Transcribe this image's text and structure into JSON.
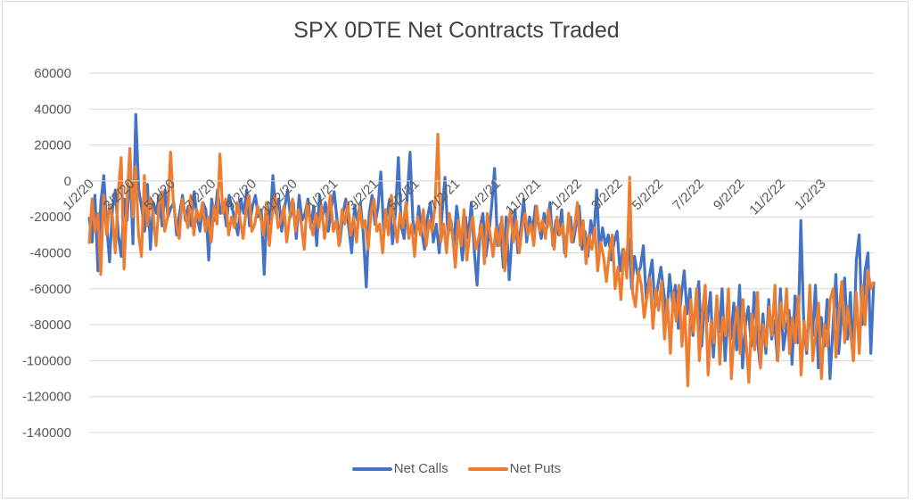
{
  "chart_data": {
    "type": "line",
    "title": "SPX 0DTE Net Contracts Traded",
    "xlabel": "",
    "ylabel": "",
    "ylim": [
      -140000,
      60000
    ],
    "yticks": [
      60000,
      40000,
      20000,
      0,
      -20000,
      -40000,
      -60000,
      -80000,
      -100000,
      -120000,
      -140000
    ],
    "ytick_labels": [
      "60000",
      "40000",
      "20000",
      "0",
      "-20000",
      "-40000",
      "-60000",
      "-80000",
      "-100000",
      "-120000",
      "-140000"
    ],
    "xtick_labels": [
      "1/2/20",
      "3/2/20",
      "5/2/20",
      "7/2/20",
      "9/2/20",
      "11/2/20",
      "1/2/21",
      "3/2/21",
      "5/2/21",
      "7/2/21",
      "9/2/21",
      "11/2/21",
      "1/2/22",
      "3/2/22",
      "5/2/22",
      "7/2/22",
      "9/2/22",
      "11/2/22",
      "1/2/23"
    ],
    "grid": true,
    "legend_position": "bottom",
    "series": [
      {
        "name": "Net Calls",
        "color": "#4472C4",
        "values": [
          -20000,
          -34000,
          -8000,
          -50000,
          -12000,
          3000,
          -24000,
          -45000,
          -15000,
          -5000,
          -30000,
          -42000,
          -10000,
          -22000,
          8000,
          -35000,
          37000,
          -5000,
          -15000,
          -28000,
          -2000,
          -38000,
          -12000,
          -18000,
          -8000,
          -25000,
          -5000,
          -20000,
          -15000,
          -12000,
          -30000,
          -18000,
          -8000,
          -22000,
          -14000,
          -25000,
          -6000,
          -20000,
          -28000,
          -12000,
          -16000,
          -44000,
          -10000,
          -22000,
          -5000,
          -18000,
          -12000,
          -25000,
          -8000,
          -15000,
          -22000,
          -30000,
          -10000,
          -18000,
          -5000,
          -25000,
          -14000,
          -8000,
          -20000,
          -16000,
          -52000,
          -12000,
          -24000,
          3000,
          -18000,
          -10000,
          -28000,
          -15000,
          -5000,
          -20000,
          -12000,
          -32000,
          -8000,
          -22000,
          -18000,
          -10000,
          -26000,
          -14000,
          -36000,
          -8000,
          -20000,
          -12000,
          -28000,
          -15000,
          -6000,
          -22000,
          -34000,
          -18000,
          -10000,
          -26000,
          -40000,
          -14000,
          -22000,
          -12000,
          -30000,
          -59000,
          -18000,
          -8000,
          -24000,
          -15000,
          5000,
          -28000,
          -20000,
          -10000,
          -35000,
          -18000,
          13000,
          -25000,
          -32000,
          -10000,
          16000,
          -22000,
          -30000,
          -14000,
          -28000,
          -38000,
          -20000,
          -12000,
          -34000,
          -24000,
          -40000,
          -18000,
          2000,
          -30000,
          -22000,
          -36000,
          -14000,
          -28000,
          -44000,
          -20000,
          -32000,
          -12000,
          -38000,
          -58000,
          -26000,
          -18000,
          -42000,
          -30000,
          -14000,
          7000,
          -36000,
          -24000,
          -48000,
          -20000,
          -55000,
          -30000,
          -16000,
          -40000,
          -26000,
          -10000,
          -34000,
          -20000,
          -28000,
          -14000,
          -24000,
          -32000,
          -18000,
          -26000,
          -12000,
          -36000,
          -22000,
          -30000,
          -16000,
          -40000,
          -28000,
          -20000,
          -34000,
          -24000,
          -14000,
          -38000,
          -28000,
          -42000,
          -22000,
          -32000,
          -5000,
          -40000,
          -26000,
          -36000,
          -30000,
          -44000,
          -34000,
          -28000,
          -50000,
          -38000,
          -46000,
          -32000,
          -60000,
          -42000,
          -52000,
          -48000,
          -36000,
          -66000,
          -54000,
          -44000,
          -70000,
          -58000,
          -48000,
          -62000,
          -76000,
          -52000,
          -68000,
          -58000,
          -82000,
          -64000,
          -50000,
          -74000,
          -60000,
          -86000,
          -70000,
          -56000,
          -92000,
          -66000,
          -78000,
          -62000,
          -98000,
          -72000,
          -84000,
          -60000,
          -100000,
          -76000,
          -88000,
          -68000,
          -94000,
          -58000,
          -104000,
          -80000,
          -70000,
          -92000,
          -62000,
          -86000,
          -102000,
          -74000,
          -96000,
          -66000,
          -88000,
          -78000,
          -100000,
          -60000,
          -94000,
          -82000,
          -72000,
          -102000,
          -64000,
          -90000,
          -22000,
          -80000,
          -96000,
          -70000,
          -86000,
          -58000,
          -104000,
          -76000,
          -92000,
          -66000,
          -110000,
          -82000,
          -52000,
          -96000,
          -74000,
          -54000,
          -88000,
          -62000,
          -100000,
          -44000,
          -30000,
          -80000,
          -50000,
          -40000,
          -96000,
          -56000
        ]
      },
      {
        "name": "Net Puts",
        "color": "#ED7D31",
        "values": [
          -35000,
          -10000,
          -28000,
          -18000,
          -52000,
          -8000,
          -30000,
          -14000,
          -20000,
          -40000,
          -6000,
          13000,
          -49000,
          -12000,
          18000,
          -20000,
          8000,
          -30000,
          -42000,
          3000,
          -25000,
          -10000,
          -18000,
          -36000,
          -14000,
          -6000,
          -28000,
          -20000,
          16000,
          -12000,
          -24000,
          -32000,
          -10000,
          -18000,
          -26000,
          -8000,
          -30000,
          -16000,
          -22000,
          -12000,
          -28000,
          -20000,
          -34000,
          -14000,
          -24000,
          15000,
          -18000,
          -10000,
          -30000,
          -20000,
          -26000,
          -12000,
          -22000,
          -32000,
          -16000,
          -8000,
          -28000,
          -24000,
          -14000,
          -20000,
          -30000,
          -12000,
          -36000,
          -18000,
          -8000,
          -26000,
          -22000,
          -14000,
          -34000,
          -20000,
          -10000,
          -28000,
          -16000,
          -24000,
          -38000,
          -12000,
          -22000,
          -30000,
          -18000,
          -26000,
          -14000,
          -32000,
          -20000,
          -8000,
          -28000,
          -22000,
          -36000,
          -16000,
          -24000,
          -12000,
          -30000,
          -20000,
          -34000,
          -14000,
          -26000,
          -22000,
          -38000,
          -18000,
          -10000,
          -28000,
          -24000,
          -40000,
          -16000,
          -30000,
          -8000,
          -22000,
          -34000,
          -18000,
          -26000,
          -12000,
          -32000,
          -24000,
          -42000,
          -20000,
          -30000,
          -16000,
          -36000,
          -22000,
          -28000,
          -14000,
          26000,
          -34000,
          -24000,
          -40000,
          -18000,
          -30000,
          -48000,
          -22000,
          -36000,
          -16000,
          -44000,
          -28000,
          -20000,
          -38000,
          -32000,
          -24000,
          -46000,
          -18000,
          -30000,
          -42000,
          -26000,
          -36000,
          -20000,
          -50000,
          -28000,
          -16000,
          -34000,
          -22000,
          -40000,
          -26000,
          -18000,
          -30000,
          -24000,
          -36000,
          -14000,
          -28000,
          -22000,
          -32000,
          -16000,
          -26000,
          -38000,
          -20000,
          -30000,
          -24000,
          -42000,
          -18000,
          -34000,
          -26000,
          -12000,
          -36000,
          -22000,
          -46000,
          -30000,
          -38000,
          -26000,
          -50000,
          -34000,
          -42000,
          -56000,
          -40000,
          -30000,
          -60000,
          -48000,
          -66000,
          -38000,
          -54000,
          2000,
          -62000,
          -70000,
          -50000,
          -58000,
          -76000,
          -64000,
          -54000,
          -82000,
          -60000,
          -72000,
          -56000,
          -88000,
          -66000,
          -96000,
          -62000,
          -78000,
          -58000,
          -92000,
          -70000,
          -114000,
          -66000,
          -84000,
          -60000,
          -100000,
          -74000,
          -58000,
          -108000,
          -78000,
          -90000,
          -64000,
          -102000,
          -76000,
          -86000,
          -60000,
          -110000,
          -82000,
          -70000,
          -96000,
          -66000,
          -88000,
          -112000,
          -74000,
          -94000,
          -62000,
          -104000,
          -80000,
          -92000,
          -70000,
          -86000,
          -58000,
          -100000,
          -68000,
          -82000,
          -60000,
          -96000,
          -76000,
          -90000,
          -64000,
          -108000,
          -78000,
          -94000,
          -58000,
          -100000,
          -84000,
          -68000,
          -110000,
          -80000,
          -92000,
          -66000,
          -60000,
          -98000,
          -74000,
          -56000,
          -90000,
          -70000,
          -84000,
          -100000,
          -62000,
          -96000,
          -58000,
          -80000,
          -50000,
          -60000,
          -56000
        ]
      }
    ]
  },
  "legend": {
    "items": [
      {
        "label": "Net Calls",
        "color": "#4472C4"
      },
      {
        "label": "Net Puts",
        "color": "#ED7D31"
      }
    ]
  }
}
